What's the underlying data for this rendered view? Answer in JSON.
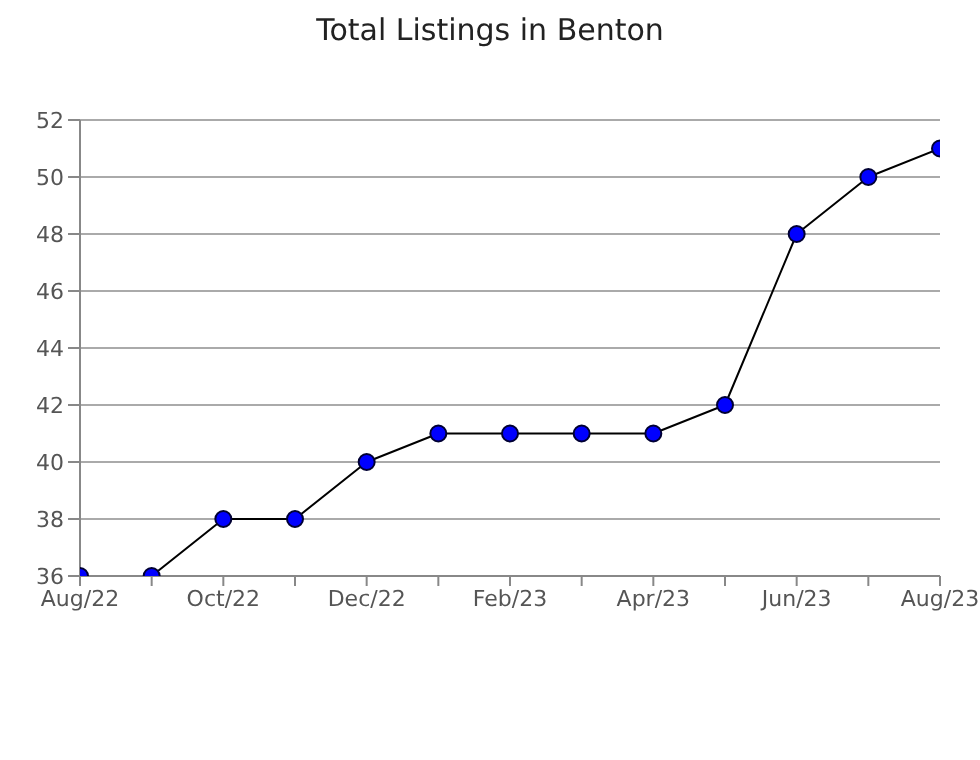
{
  "chart_data": {
    "type": "line",
    "title": "Total Listings in Benton",
    "categories": [
      "Aug/22",
      null,
      "Oct/22",
      null,
      "Dec/22",
      null,
      "Feb/23",
      null,
      "Apr/23",
      null,
      "Jun/23",
      null,
      "Aug/23"
    ],
    "series": [
      {
        "color": "#0000ff",
        "values": [
          36,
          36,
          38,
          38,
          40,
          41,
          41,
          41,
          41,
          42,
          48,
          50,
          51
        ]
      }
    ],
    "ylim": [
      36,
      52
    ],
    "yticks": [
      36,
      38,
      40,
      42,
      44,
      46,
      48,
      50,
      52
    ],
    "grid": "y",
    "marker": "circle",
    "line_style": "solid"
  }
}
